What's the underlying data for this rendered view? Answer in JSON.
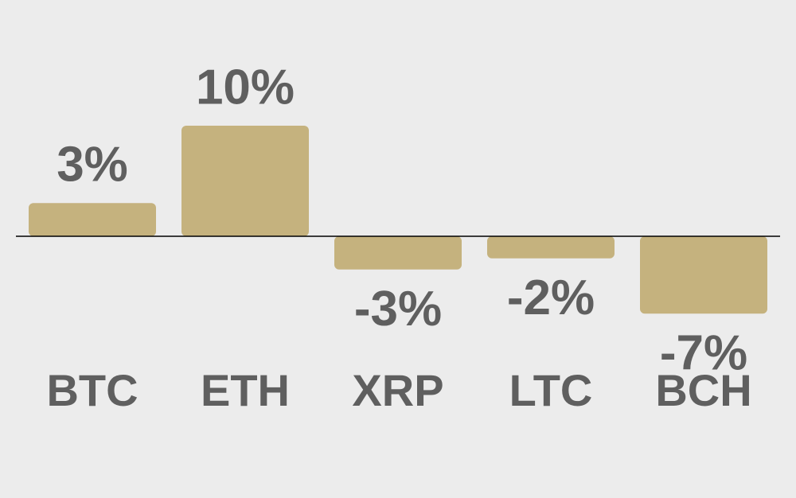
{
  "chart_data": {
    "type": "bar",
    "categories": [
      "BTC",
      "ETH",
      "XRP",
      "LTC",
      "BCH"
    ],
    "values": [
      3,
      10,
      -3,
      -2,
      -7
    ],
    "value_labels": [
      "3%",
      "10%",
      "-3%",
      "-2%",
      "-7%"
    ],
    "color": "#c5b27e"
  }
}
